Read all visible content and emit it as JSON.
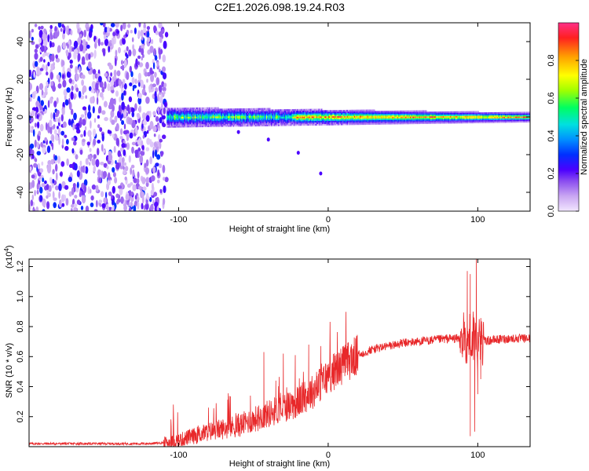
{
  "figure_title": "C2E1.2026.098.19.24.R03",
  "chart_data": [
    {
      "type": "heatmap",
      "title": "C2E1.2026.098.19.24.R03",
      "xlabel": "Height of straight line (km)",
      "ylabel": "Frequency (Hz)",
      "xlim": [
        -200,
        135
      ],
      "ylim": [
        -50,
        50
      ],
      "xticks": [
        -100,
        0,
        100
      ],
      "yticks": [
        -40,
        -20,
        0,
        20,
        40
      ],
      "xtick_labels": [
        "-100",
        "0",
        "100"
      ],
      "ytick_labels": [
        "-40",
        "-20",
        "0",
        "20",
        "40"
      ],
      "colorbar": {
        "label": "Normalized spectral amplitude",
        "range": [
          0,
          1
        ],
        "ticks": [
          0.0,
          0.2,
          0.4,
          0.6,
          0.8
        ],
        "tick_labels": [
          "0.0",
          "0.2",
          "0.4",
          "0.6",
          "0.8"
        ],
        "colors": [
          "#f2e6ff",
          "#c9a6f2",
          "#8a4cf0",
          "#4b00ff",
          "#0030ff",
          "#0090ff",
          "#00e0e0",
          "#00ff60",
          "#a0ff00",
          "#ffff00",
          "#ffa000",
          "#ff2020",
          "#ff3088"
        ]
      },
      "description_of_regions": [
        {
          "x_range": [
            -200,
            -108
          ],
          "pattern": "broadband noise, amplitude ~0.15-0.35 across all frequencies"
        },
        {
          "x_range": [
            -108,
            135
          ],
          "pattern": "narrow band centered on 0 Hz, width ~±5 Hz near -100 km tapering to ~±2 Hz, peak amplitude ~0.9-1.0"
        }
      ]
    },
    {
      "type": "line",
      "xlabel": "Height of straight line (km)",
      "ylabel": "SNR (10 * v/v)",
      "scale_label": "(x10",
      "scale_exponent": "4",
      "scale_suffix": ")",
      "xlim": [
        -200,
        135
      ],
      "ylim": [
        0,
        1.25
      ],
      "xticks": [
        -100,
        0,
        100
      ],
      "yticks": [
        0.2,
        0.4,
        0.6,
        0.8,
        1.0,
        1.2
      ],
      "xtick_labels": [
        "-100",
        "0",
        "100"
      ],
      "ytick_labels": [
        "0.2",
        "0.4",
        "0.6",
        "0.8",
        "1.0",
        "1.2"
      ],
      "series": [
        {
          "name": "SNR",
          "color": "#e8282a",
          "baseline_points": [
            [
              -200,
              0.02
            ],
            [
              -120,
              0.02
            ],
            [
              -105,
              0.03
            ],
            [
              -90,
              0.07
            ],
            [
              -80,
              0.1
            ],
            [
              -70,
              0.12
            ],
            [
              -60,
              0.14
            ],
            [
              -50,
              0.18
            ],
            [
              -40,
              0.22
            ],
            [
              -30,
              0.26
            ],
            [
              -20,
              0.3
            ],
            [
              -10,
              0.37
            ],
            [
              0,
              0.47
            ],
            [
              10,
              0.55
            ],
            [
              20,
              0.61
            ],
            [
              30,
              0.65
            ],
            [
              40,
              0.67
            ],
            [
              50,
              0.69
            ],
            [
              60,
              0.7
            ],
            [
              70,
              0.71
            ],
            [
              80,
              0.72
            ],
            [
              90,
              0.72
            ],
            [
              100,
              0.7
            ],
            [
              110,
              0.71
            ],
            [
              120,
              0.72
            ],
            [
              135,
              0.72
            ]
          ],
          "peaks": [
            [
              -80,
              0.26
            ],
            [
              -75,
              0.21
            ],
            [
              -60,
              0.22
            ],
            [
              -52,
              0.34
            ],
            [
              -43,
              0.63
            ],
            [
              -35,
              0.44
            ],
            [
              -30,
              0.62
            ],
            [
              -22,
              0.61
            ],
            [
              -13,
              0.68
            ],
            [
              -5,
              0.67
            ],
            [
              93,
              1.17
            ],
            [
              95,
              1.15
            ],
            [
              97,
              0.9
            ],
            [
              99,
              1.25
            ],
            [
              101,
              0.85
            ]
          ],
          "troughs": [
            [
              95,
              0.07
            ],
            [
              98,
              0.1
            ],
            [
              100,
              0.35
            ],
            [
              102,
              0.45
            ]
          ]
        }
      ]
    }
  ]
}
